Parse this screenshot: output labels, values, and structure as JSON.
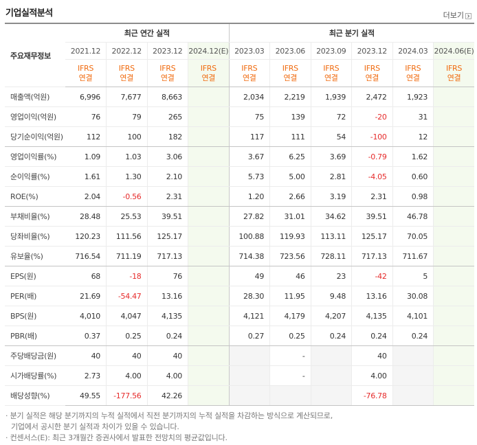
{
  "header": {
    "title": "기업실적분석",
    "more": "더보기"
  },
  "table": {
    "row_header": "주요재무정보",
    "groups": [
      {
        "label": "최근 연간 실적",
        "span": 4
      },
      {
        "label": "최근 분기 실적",
        "span": 6
      }
    ],
    "columns": [
      {
        "period": "2021.12",
        "basis": "IFRS",
        "scope": "연결",
        "estimate": false
      },
      {
        "period": "2022.12",
        "basis": "IFRS",
        "scope": "연결",
        "estimate": false
      },
      {
        "period": "2023.12",
        "basis": "IFRS",
        "scope": "연결",
        "estimate": false
      },
      {
        "period": "2024.12(E)",
        "basis": "IFRS",
        "scope": "연결",
        "estimate": true
      },
      {
        "period": "2023.03",
        "basis": "IFRS",
        "scope": "연결",
        "estimate": false
      },
      {
        "period": "2023.06",
        "basis": "IFRS",
        "scope": "연결",
        "estimate": false
      },
      {
        "period": "2023.09",
        "basis": "IFRS",
        "scope": "연결",
        "estimate": false
      },
      {
        "period": "2023.12",
        "basis": "IFRS",
        "scope": "연결",
        "estimate": false
      },
      {
        "period": "2024.03",
        "basis": "IFRS",
        "scope": "연결",
        "estimate": false
      },
      {
        "period": "2024.06(E)",
        "basis": "IFRS",
        "scope": "연결",
        "estimate": true
      }
    ],
    "rows": [
      {
        "label": "매출액(억원)",
        "values": [
          "6,996",
          "7,677",
          "8,663",
          null,
          "2,034",
          "2,219",
          "1,939",
          "2,472",
          "1,923",
          null
        ]
      },
      {
        "label": "영업이익(억원)",
        "values": [
          "76",
          "79",
          "265",
          null,
          "75",
          "139",
          "72",
          "-20",
          "31",
          null
        ]
      },
      {
        "label": "당기순이익(억원)",
        "values": [
          "112",
          "100",
          "182",
          null,
          "117",
          "111",
          "54",
          "-100",
          "12",
          null
        ],
        "group_end": true
      },
      {
        "label": "영업이익률(%)",
        "values": [
          "1.09",
          "1.03",
          "3.06",
          null,
          "3.67",
          "6.25",
          "3.69",
          "-0.79",
          "1.62",
          null
        ]
      },
      {
        "label": "순이익률(%)",
        "values": [
          "1.61",
          "1.30",
          "2.10",
          null,
          "5.73",
          "5.00",
          "2.81",
          "-4.05",
          "0.60",
          null
        ]
      },
      {
        "label": "ROE(%)",
        "values": [
          "2.04",
          "-0.56",
          "2.31",
          null,
          "1.20",
          "2.66",
          "3.19",
          "2.31",
          "0.98",
          null
        ],
        "group_end": true
      },
      {
        "label": "부채비율(%)",
        "values": [
          "28.48",
          "25.53",
          "39.51",
          null,
          "27.82",
          "31.01",
          "34.62",
          "39.51",
          "46.78",
          null
        ]
      },
      {
        "label": "당좌비율(%)",
        "values": [
          "120.23",
          "111.56",
          "125.17",
          null,
          "100.88",
          "119.93",
          "113.11",
          "125.17",
          "70.05",
          null
        ]
      },
      {
        "label": "유보율(%)",
        "values": [
          "716.54",
          "711.19",
          "717.13",
          null,
          "714.38",
          "723.56",
          "728.11",
          "717.13",
          "711.67",
          null
        ],
        "group_end": true
      },
      {
        "label": "EPS(원)",
        "values": [
          "68",
          "-18",
          "76",
          null,
          "49",
          "46",
          "23",
          "-42",
          "5",
          null
        ]
      },
      {
        "label": "PER(배)",
        "values": [
          "21.69",
          "-54.47",
          "13.16",
          null,
          "28.30",
          "11.95",
          "9.48",
          "13.16",
          "30.08",
          null
        ]
      },
      {
        "label": "BPS(원)",
        "values": [
          "4,010",
          "4,047",
          "4,135",
          null,
          "4,121",
          "4,179",
          "4,207",
          "4,135",
          "4,101",
          null
        ]
      },
      {
        "label": "PBR(배)",
        "values": [
          "0.37",
          "0.25",
          "0.24",
          null,
          "0.27",
          "0.25",
          "0.24",
          "0.24",
          "0.24",
          null
        ],
        "group_end": true
      },
      {
        "label": "주당배당금(원)",
        "values": [
          "40",
          "40",
          "40",
          null,
          null,
          "-",
          null,
          "40",
          null,
          null
        ]
      },
      {
        "label": "시가배당률(%)",
        "values": [
          "2.73",
          "4.00",
          "4.00",
          null,
          null,
          "-",
          null,
          "4.00",
          null,
          null
        ]
      },
      {
        "label": "배당성향(%)",
        "values": [
          "49.55",
          "-177.56",
          "42.26",
          null,
          null,
          null,
          null,
          "-76.78",
          null,
          null
        ]
      }
    ]
  },
  "notes": [
    "· 분기 실적은 해당 분기까지의 누적 실적에서 직전 분기까지의 누적 실적을 차감하는 방식으로 계산되므로,",
    "기업에서 공시한 분기 실적과 차이가 있을 수 있습니다.",
    "· 컨센서스(E): 최근 3개월간 증권사에서 발표한 전망치의 평균값입니다."
  ]
}
